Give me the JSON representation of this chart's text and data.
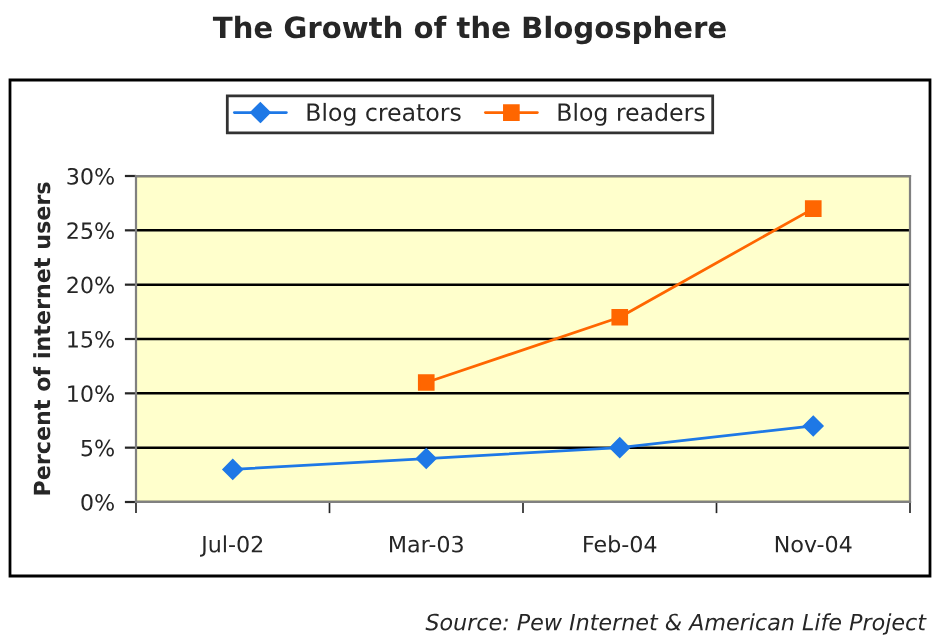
{
  "chart_data": {
    "type": "line",
    "title": "The Growth of the Blogosphere",
    "ylabel": "Percent of internet users",
    "categories": [
      "Jul-02",
      "Mar-03",
      "Feb-04",
      "Nov-04"
    ],
    "series": [
      {
        "name": "Blog creators",
        "color": "#1e78e6",
        "values": [
          3,
          4,
          5,
          7
        ],
        "marker": "diamond"
      },
      {
        "name": "Blog readers",
        "color": "#ff6600",
        "values": [
          null,
          11,
          17,
          27
        ],
        "marker": "square"
      }
    ],
    "ylim": [
      0,
      30
    ],
    "yticks": [
      {
        "value": 0,
        "label": "0%"
      },
      {
        "value": 5,
        "label": "5%"
      },
      {
        "value": 10,
        "label": "10%"
      },
      {
        "value": 15,
        "label": "15%"
      },
      {
        "value": 20,
        "label": "20%"
      },
      {
        "value": 25,
        "label": "25%"
      },
      {
        "value": 30,
        "label": "30%"
      }
    ],
    "grid": "y",
    "legend": "top",
    "line_style": "solid",
    "annotations": [
      "Source: Pew Internet & American Life Project"
    ]
  }
}
